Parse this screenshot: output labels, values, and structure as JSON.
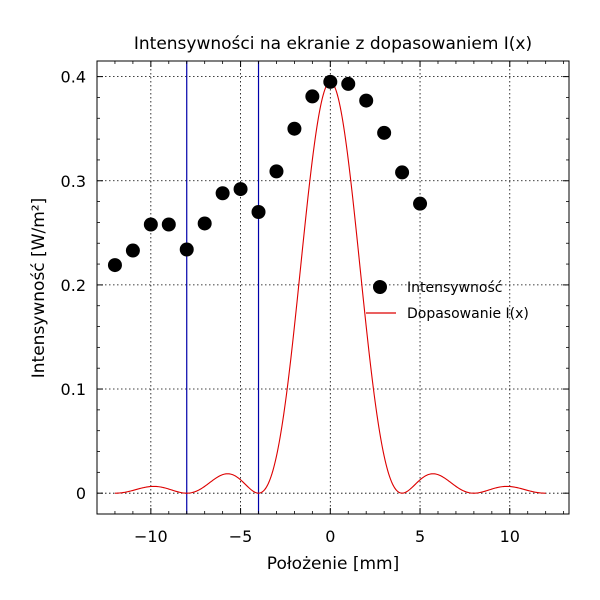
{
  "chart_data": {
    "type": "scatter",
    "title": "Intensywności na ekranie z dopasowaniem I(x)",
    "xlabel": "Położenie [mm]",
    "ylabel": "Intensywność [W/m²]",
    "xlim": [
      -13,
      13.3
    ],
    "ylim": [
      -0.02,
      0.415
    ],
    "xticks": [
      -10,
      -5,
      0,
      5,
      10
    ],
    "xtick_labels": [
      "−10",
      "−5",
      "0",
      "5",
      "10"
    ],
    "yticks": [
      0,
      0.1,
      0.2,
      0.3,
      0.4
    ],
    "ytick_labels": [
      "0",
      "0.1",
      "0.2",
      "0.3",
      "0.4"
    ],
    "grid": true,
    "legend_position": "right",
    "series": [
      {
        "name": "Intensywność",
        "kind": "scatter",
        "color": "#000000",
        "x": [
          -12,
          -11,
          -10,
          -9,
          -8,
          -7,
          -6,
          -5,
          -4,
          -3,
          -2,
          -1,
          0,
          1,
          2,
          3,
          4,
          5
        ],
        "y": [
          0.219,
          0.233,
          0.258,
          0.258,
          0.234,
          0.259,
          0.288,
          0.292,
          0.27,
          0.309,
          0.35,
          0.381,
          0.395,
          0.393,
          0.377,
          0.346,
          0.308,
          0.278
        ]
      },
      {
        "name": "Dopasowanie I(x)",
        "kind": "line",
        "color": "#dd0000",
        "function": "sinc2",
        "peak": 0.395,
        "first_zero": 4,
        "x_range": [
          -12,
          12
        ]
      }
    ],
    "vertical_lines": [
      {
        "x": -8,
        "color": "#0000aa"
      },
      {
        "x": -4,
        "color": "#0000aa"
      }
    ]
  }
}
